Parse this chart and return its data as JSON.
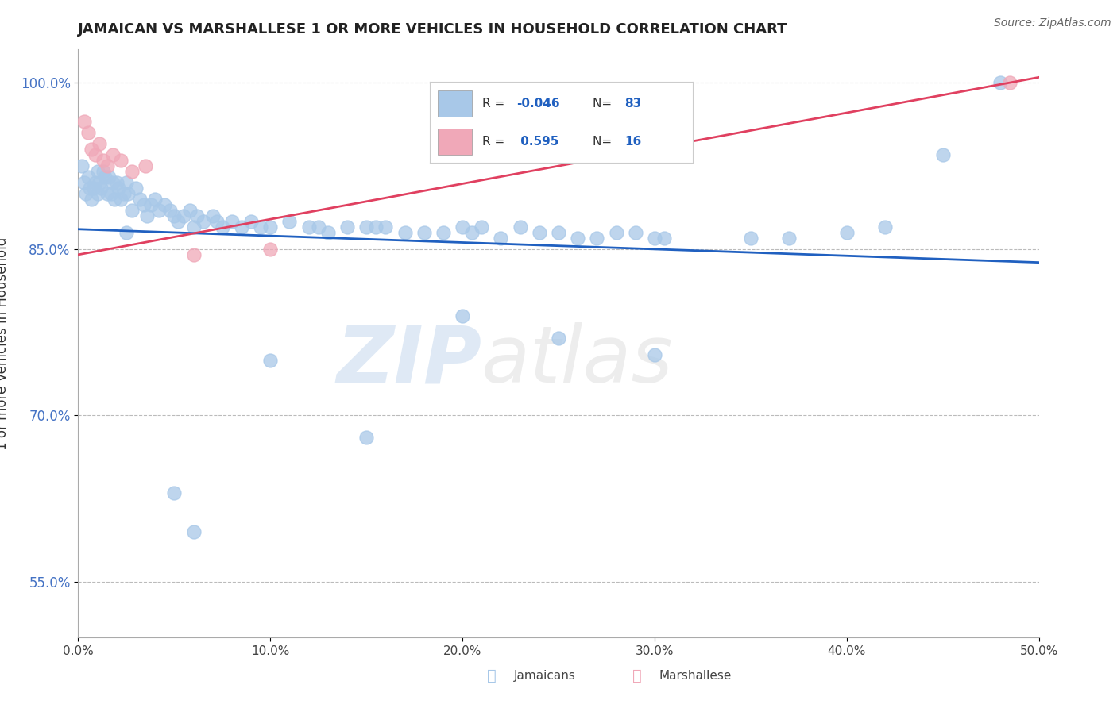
{
  "title": "JAMAICAN VS MARSHALLESE 1 OR MORE VEHICLES IN HOUSEHOLD CORRELATION CHART",
  "source": "Source: ZipAtlas.com",
  "xlabel_label": "Jamaicans",
  "ylabel_label": "Marshallese",
  "yaxis_label": "1 or more Vehicles in Household",
  "xlim": [
    0.0,
    50.0
  ],
  "ylim": [
    50.0,
    103.0
  ],
  "xticks": [
    0.0,
    10.0,
    20.0,
    30.0,
    40.0,
    50.0
  ],
  "yticks": [
    55.0,
    70.0,
    85.0,
    100.0
  ],
  "ytick_labels": [
    "55.0%",
    "70.0%",
    "85.0%",
    "100.0%"
  ],
  "xtick_labels": [
    "0.0%",
    "10.0%",
    "20.0%",
    "30.0%",
    "40.0%",
    "50.0%"
  ],
  "legend_r_jamaican": "-0.046",
  "legend_n_jamaican": "83",
  "legend_r_marshallese": "0.595",
  "legend_n_marshallese": "16",
  "blue_color": "#A8C8E8",
  "pink_color": "#F0A8B8",
  "blue_line_color": "#2060C0",
  "pink_line_color": "#E04060",
  "grid_color": "#BBBBBB",
  "background_color": "#FFFFFF",
  "watermark_zip": "ZIP",
  "watermark_atlas": "atlas",
  "blue_points": [
    [
      0.2,
      92.5
    ],
    [
      0.3,
      91.0
    ],
    [
      0.4,
      90.0
    ],
    [
      0.5,
      91.5
    ],
    [
      0.6,
      90.5
    ],
    [
      0.7,
      89.5
    ],
    [
      0.8,
      90.5
    ],
    [
      0.9,
      91.0
    ],
    [
      1.0,
      92.0
    ],
    [
      1.0,
      90.0
    ],
    [
      1.1,
      91.0
    ],
    [
      1.2,
      90.5
    ],
    [
      1.3,
      92.0
    ],
    [
      1.4,
      91.5
    ],
    [
      1.5,
      90.0
    ],
    [
      1.6,
      91.5
    ],
    [
      1.7,
      90.0
    ],
    [
      1.8,
      91.0
    ],
    [
      1.9,
      89.5
    ],
    [
      2.0,
      91.0
    ],
    [
      2.1,
      90.5
    ],
    [
      2.2,
      89.5
    ],
    [
      2.4,
      90.0
    ],
    [
      2.5,
      91.0
    ],
    [
      2.6,
      90.0
    ],
    [
      2.8,
      88.5
    ],
    [
      3.0,
      90.5
    ],
    [
      3.2,
      89.5
    ],
    [
      3.4,
      89.0
    ],
    [
      3.6,
      88.0
    ],
    [
      3.8,
      89.0
    ],
    [
      4.0,
      89.5
    ],
    [
      4.2,
      88.5
    ],
    [
      4.5,
      89.0
    ],
    [
      4.8,
      88.5
    ],
    [
      5.0,
      88.0
    ],
    [
      5.2,
      87.5
    ],
    [
      5.5,
      88.0
    ],
    [
      5.8,
      88.5
    ],
    [
      6.0,
      87.0
    ],
    [
      6.2,
      88.0
    ],
    [
      6.5,
      87.5
    ],
    [
      7.0,
      88.0
    ],
    [
      7.2,
      87.5
    ],
    [
      7.5,
      87.0
    ],
    [
      8.0,
      87.5
    ],
    [
      8.5,
      87.0
    ],
    [
      9.0,
      87.5
    ],
    [
      9.5,
      87.0
    ],
    [
      10.0,
      87.0
    ],
    [
      11.0,
      87.5
    ],
    [
      12.0,
      87.0
    ],
    [
      12.5,
      87.0
    ],
    [
      13.0,
      86.5
    ],
    [
      14.0,
      87.0
    ],
    [
      15.0,
      87.0
    ],
    [
      15.5,
      87.0
    ],
    [
      16.0,
      87.0
    ],
    [
      17.0,
      86.5
    ],
    [
      18.0,
      86.5
    ],
    [
      19.0,
      86.5
    ],
    [
      20.0,
      87.0
    ],
    [
      20.5,
      86.5
    ],
    [
      21.0,
      87.0
    ],
    [
      22.0,
      86.0
    ],
    [
      23.0,
      87.0
    ],
    [
      24.0,
      86.5
    ],
    [
      25.0,
      86.5
    ],
    [
      26.0,
      86.0
    ],
    [
      27.0,
      86.0
    ],
    [
      28.0,
      86.5
    ],
    [
      29.0,
      86.5
    ],
    [
      30.0,
      86.0
    ],
    [
      30.5,
      86.0
    ],
    [
      35.0,
      86.0
    ],
    [
      37.0,
      86.0
    ],
    [
      40.0,
      86.5
    ],
    [
      42.0,
      87.0
    ],
    [
      45.0,
      93.5
    ],
    [
      48.0,
      100.0
    ],
    [
      2.5,
      86.5
    ],
    [
      5.0,
      63.0
    ],
    [
      6.0,
      59.5
    ],
    [
      10.0,
      75.0
    ],
    [
      15.0,
      68.0
    ],
    [
      20.0,
      79.0
    ],
    [
      25.0,
      77.0
    ],
    [
      30.0,
      75.5
    ]
  ],
  "pink_points": [
    [
      0.3,
      96.5
    ],
    [
      0.5,
      95.5
    ],
    [
      0.7,
      94.0
    ],
    [
      0.9,
      93.5
    ],
    [
      1.1,
      94.5
    ],
    [
      1.3,
      93.0
    ],
    [
      1.5,
      92.5
    ],
    [
      1.8,
      93.5
    ],
    [
      2.2,
      93.0
    ],
    [
      2.8,
      92.0
    ],
    [
      3.5,
      92.5
    ],
    [
      6.0,
      84.5
    ],
    [
      10.0,
      85.0
    ],
    [
      48.5,
      100.0
    ]
  ],
  "blue_line_x": [
    0.0,
    50.0
  ],
  "blue_line_y": [
    86.8,
    83.8
  ],
  "pink_line_x": [
    0.0,
    50.0
  ],
  "pink_line_y": [
    84.5,
    100.5
  ]
}
